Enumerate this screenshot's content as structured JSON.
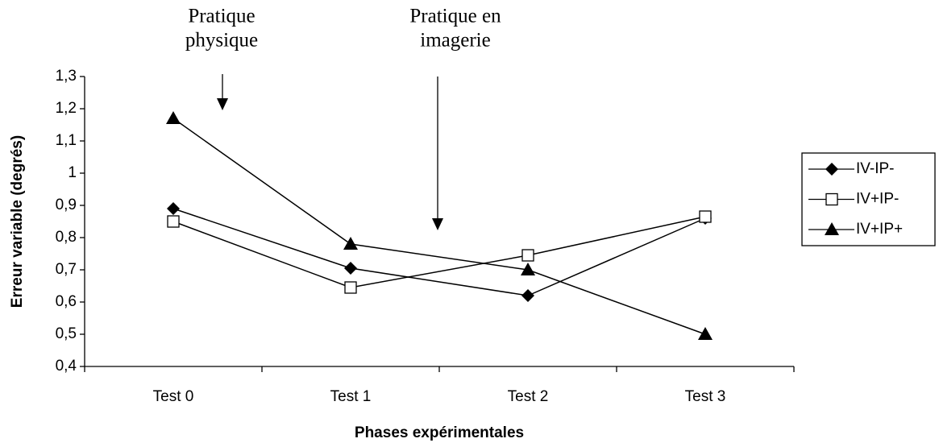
{
  "chart_data": {
    "type": "line",
    "y_label": "Erreur variable (degrés)",
    "x_label": "Phases expérimentales",
    "categories": [
      "Test 0",
      "Test 1",
      "Test 2",
      "Test 3"
    ],
    "series": [
      {
        "name": "IV-IP-",
        "color": "#000000",
        "marker": "diamond",
        "values": [
          0.89,
          0.705,
          0.62,
          0.86
        ]
      },
      {
        "name": "IV+IP-",
        "color": "#000000",
        "marker": "square",
        "values": [
          0.85,
          0.645,
          0.745,
          0.865
        ]
      },
      {
        "name": "IV+IP+",
        "color": "#000000",
        "marker": "triangle",
        "values": [
          1.17,
          0.78,
          0.7,
          0.5
        ]
      }
    ],
    "ylim": [
      0.4,
      1.3
    ],
    "yticks": [
      {
        "value": 0.4,
        "label": "0,4"
      },
      {
        "value": 0.5,
        "label": "0,5"
      },
      {
        "value": 0.6,
        "label": "0,6"
      },
      {
        "value": 0.7,
        "label": "0,7"
      },
      {
        "value": 0.8,
        "label": "0,8"
      },
      {
        "value": 0.9,
        "label": "0,9"
      },
      1,
      {
        "value": 1.1,
        "label": "1,1"
      },
      {
        "value": 1.2,
        "label": "1,2"
      },
      {
        "value": 1.3,
        "label": "1,3"
      }
    ],
    "legend": "right",
    "annotations": [
      {
        "lines": [
          "Pratique",
          "physique"
        ]
      },
      {
        "lines": [
          "Pratique en",
          "imagerie"
        ]
      }
    ]
  }
}
